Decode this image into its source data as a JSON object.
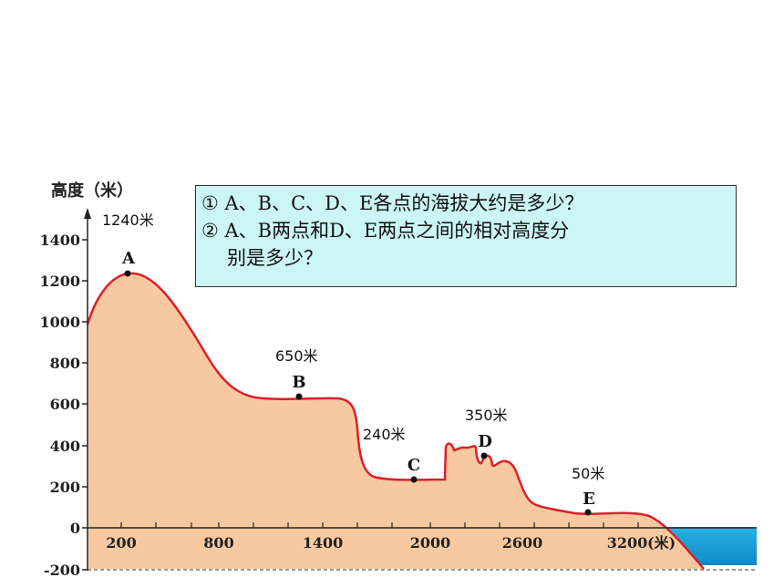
{
  "chart": {
    "ylabel": "高度（米）",
    "xunit": "(米)",
    "yticks": [
      "1400",
      "1200",
      "1000",
      "800",
      "600",
      "400",
      "200",
      "0",
      "-200"
    ],
    "xticks": [
      "200",
      "800",
      "1400",
      "2000",
      "2600",
      "3200"
    ]
  },
  "points": [
    {
      "label": "A",
      "elev_text": "1240米"
    },
    {
      "label": "B",
      "elev_text": "650米"
    },
    {
      "label": "C",
      "elev_text": "240米"
    },
    {
      "label": "D",
      "elev_text": "350米"
    },
    {
      "label": "E",
      "elev_text": "50米"
    }
  ],
  "questions": {
    "q1": "① A、B、C、D、E各点的海拔大约是多少？",
    "q2": "② A、B两点和D、E两点之间的相对高度分",
    "q2_cont": "别是多少？"
  },
  "colors": {
    "terrain": "#f8c9a0",
    "profile": "#dd1f2a",
    "sea": "#1aa3d8",
    "box": "#ccf5f5"
  }
}
